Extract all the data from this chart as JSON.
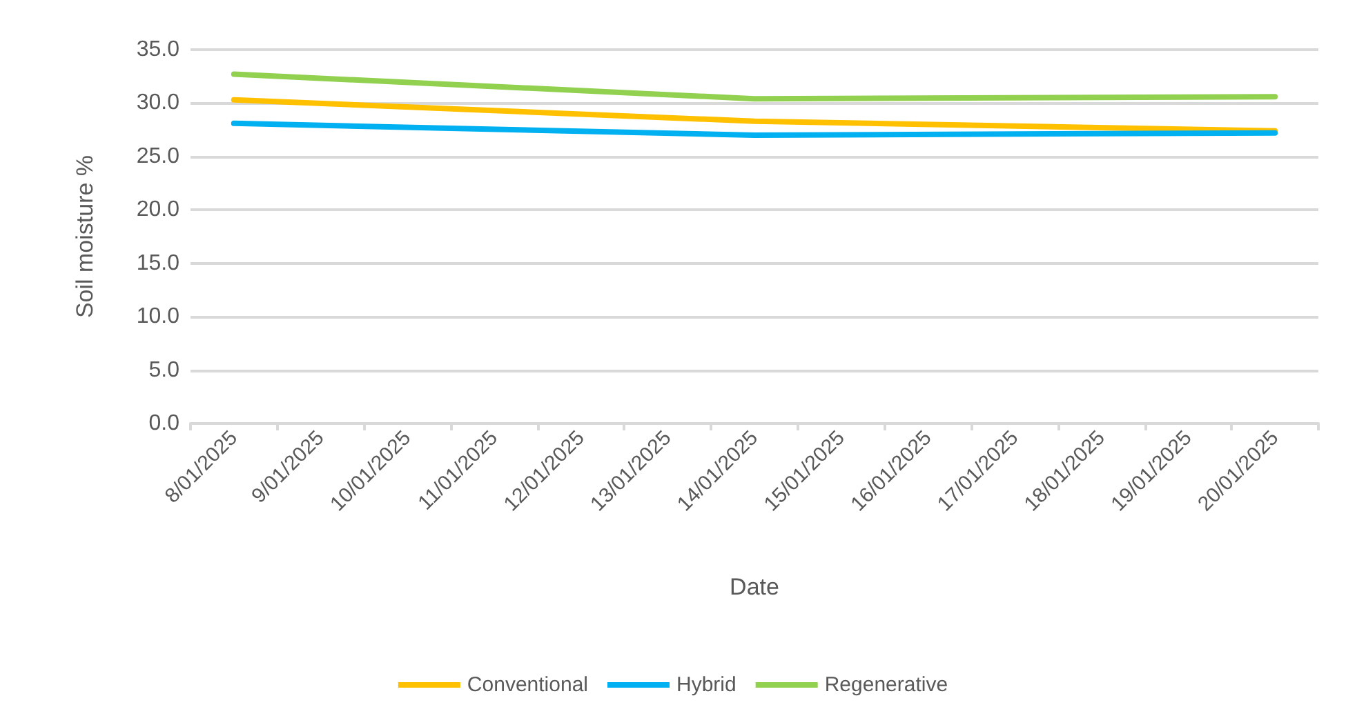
{
  "chart_data": {
    "type": "line",
    "xlabel": "Date",
    "ylabel": "Soil moisture %",
    "categories": [
      "8/01/2025",
      "9/01/2025",
      "10/01/2025",
      "11/01/2025",
      "12/01/2025",
      "13/01/2025",
      "14/01/2025",
      "15/01/2025",
      "16/01/2025",
      "17/01/2025",
      "18/01/2025",
      "19/01/2025",
      "20/01/2025"
    ],
    "series": [
      {
        "name": "Conventional",
        "color": "#ffc000",
        "x": [
          "8/01/2025",
          "14/01/2025",
          "20/01/2025"
        ],
        "values": [
          30.3,
          28.3,
          27.4
        ]
      },
      {
        "name": "Hybrid",
        "color": "#00b0f0",
        "x": [
          "8/01/2025",
          "14/01/2025",
          "20/01/2025"
        ],
        "values": [
          28.1,
          27.0,
          27.2
        ]
      },
      {
        "name": "Regenerative",
        "color": "#92d050",
        "x": [
          "8/01/2025",
          "14/01/2025",
          "20/01/2025"
        ],
        "values": [
          32.7,
          30.4,
          30.6
        ]
      }
    ],
    "ylim": [
      0,
      35
    ],
    "yticks": [
      {
        "value": 0,
        "label": "0.0"
      },
      {
        "value": 5,
        "label": "5.0"
      },
      {
        "value": 10,
        "label": "10.0"
      },
      {
        "value": 15,
        "label": "15.0"
      },
      {
        "value": 20,
        "label": "20.0"
      },
      {
        "value": 25,
        "label": "25.0"
      },
      {
        "value": 30,
        "label": "30.0"
      },
      {
        "value": 35,
        "label": "35.0"
      }
    ],
    "grid": "y",
    "legend": "bottom",
    "marker": "none",
    "line_style": "solid"
  }
}
